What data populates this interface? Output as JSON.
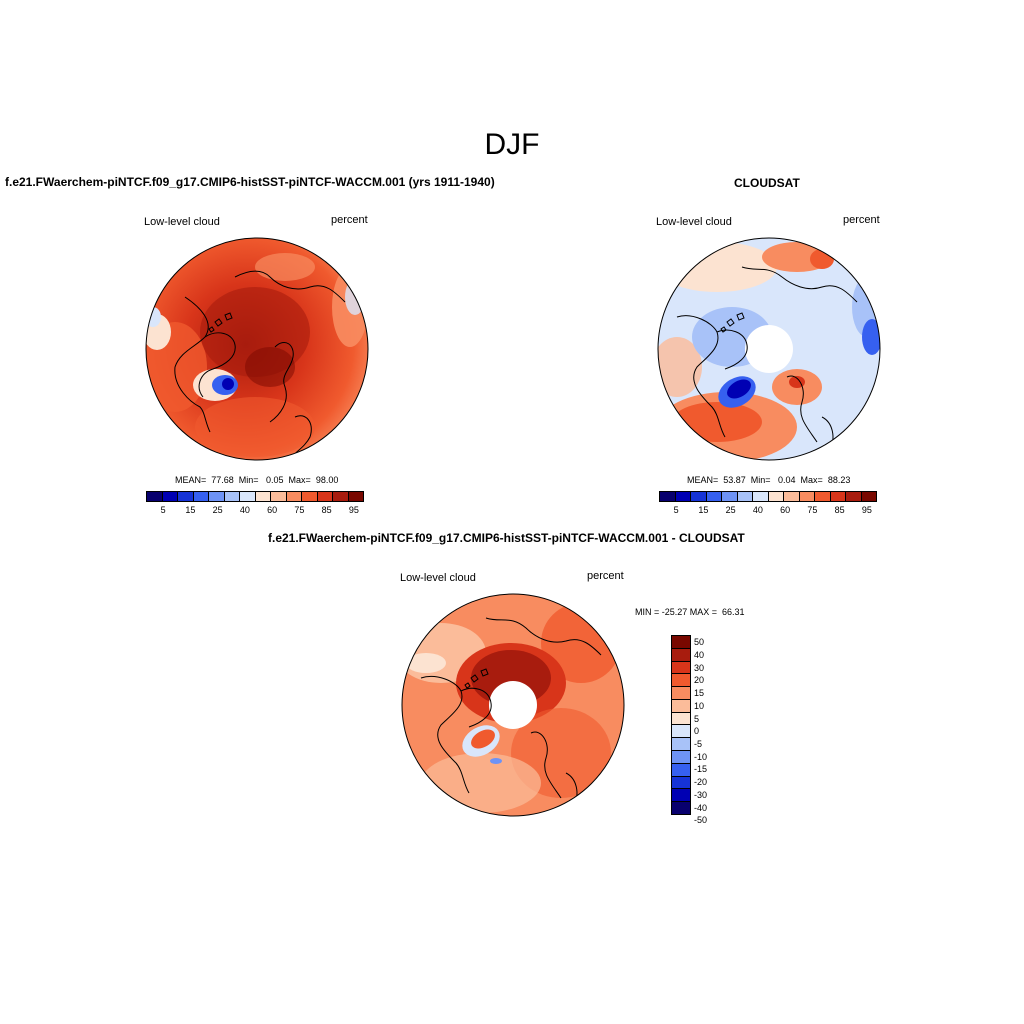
{
  "main_title": "DJF",
  "colors": {
    "seq13": [
      "#08006e",
      "#0000b3",
      "#1633d6",
      "#3660f0",
      "#6e93f5",
      "#a8c2f8",
      "#d9e6fb",
      "#fce3d1",
      "#fbbc9a",
      "#f88c60",
      "#f05a2e",
      "#d8351a",
      "#a81c0e",
      "#790800"
    ],
    "div15": [
      "#790800",
      "#a81c0e",
      "#d8351a",
      "#f05a2e",
      "#f88c60",
      "#fbbc9a",
      "#fce3d1",
      "#d9e6fb",
      "#a8c2f8",
      "#6e93f5",
      "#3660f0",
      "#1633d6",
      "#0000b3",
      "#08006e"
    ]
  },
  "panels": [
    {
      "title": "f.e21.FWaerchem-piNTCF.f09_g17.CMIP6-histSST-piNTCF-WACCM.001 (yrs 1911-1940)",
      "variable": "Low-level cloud",
      "units": "percent",
      "stats": "MEAN=  77.68  Min=   0.05  Max=  98.00",
      "colorbar_ticks": [
        "5",
        "15",
        "25",
        "40",
        "60",
        "75",
        "85",
        "95"
      ],
      "mean": 77.68,
      "min": 0.05,
      "max": 98.0
    },
    {
      "title": "CLOUDSAT",
      "variable": "Low-level cloud",
      "units": "percent",
      "stats": "MEAN=  53.87  Min=   0.04  Max=  88.23",
      "colorbar_ticks": [
        "5",
        "15",
        "25",
        "40",
        "60",
        "75",
        "85",
        "95"
      ],
      "mean": 53.87,
      "min": 0.04,
      "max": 88.23
    }
  ],
  "diff_panel": {
    "title": "f.e21.FWaerchem-piNTCF.f09_g17.CMIP6-histSST-piNTCF-WACCM.001 - CLOUDSAT",
    "variable": "Low-level cloud",
    "units": "percent",
    "stats": "MIN = -25.27 MAX =  66.31",
    "colorbar_ticks": [
      "50",
      "40",
      "30",
      "20",
      "15",
      "10",
      "5",
      "0",
      "-5",
      "-10",
      "-15",
      "-20",
      "-30",
      "-40",
      "-50"
    ],
    "min": -25.27,
    "max": 66.31
  }
}
